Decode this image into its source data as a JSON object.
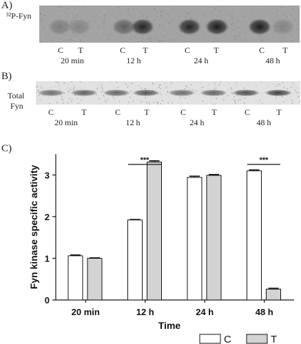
{
  "panel_a": {
    "letter": "A)",
    "label": "³²P-Fyn",
    "lanes": [
      "C",
      "T",
      "C",
      "T",
      "C",
      "T",
      "C",
      "T"
    ],
    "times": [
      "20 min",
      "12 h",
      "24 h",
      "48 h"
    ],
    "band_intensity": [
      0.25,
      0.2,
      0.45,
      0.85,
      0.85,
      0.9,
      0.9,
      0.2
    ]
  },
  "panel_b": {
    "letter": "B)",
    "label_line1": "Total",
    "label_line2": "Fyn",
    "lanes": [
      "C",
      "T",
      "C",
      "T",
      "C",
      "T",
      "C",
      "T"
    ],
    "times": [
      "20 min",
      "12 h",
      "24 h",
      "48 h"
    ],
    "band_intensity": [
      0.55,
      0.6,
      0.6,
      0.65,
      0.55,
      0.6,
      0.7,
      0.75
    ]
  },
  "panel_c": {
    "letter": "C)"
  },
  "chart_data": {
    "type": "bar",
    "categories": [
      "20 min",
      "12 h",
      "24 h",
      "48 h"
    ],
    "series": [
      {
        "name": "C",
        "values": [
          1.06,
          1.92,
          2.94,
          3.1
        ],
        "errors": [
          0.02,
          0.01,
          0.03,
          0.02
        ],
        "color": "#ffffff"
      },
      {
        "name": "T",
        "values": [
          1.0,
          3.31,
          2.99,
          0.26
        ],
        "errors": [
          0.01,
          0.03,
          0.02,
          0.02
        ],
        "color": "#d3d3d3"
      }
    ],
    "xlabel": "Time",
    "ylabel": "Fyn kinase specific activity",
    "ylim": [
      0,
      3.5
    ],
    "yticks": [
      "0",
      "1",
      "2",
      "3"
    ],
    "significance": [
      {
        "category": "12 h",
        "label": "***"
      },
      {
        "category": "48 h",
        "label": "***"
      }
    ],
    "legend": "bottom-right",
    "grid": false
  }
}
